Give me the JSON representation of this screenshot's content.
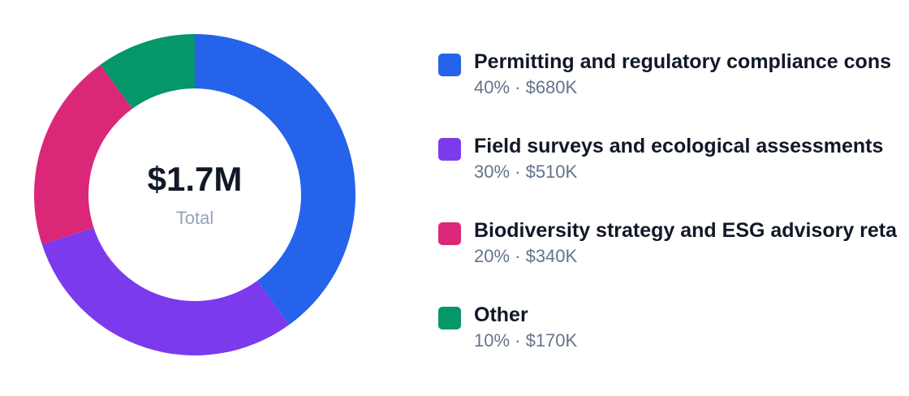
{
  "chart_data": {
    "type": "pie",
    "variant": "donut",
    "center": {
      "value": "$1.7M",
      "label": "Total"
    },
    "categories": [
      "Permitting and regulatory compliance cons",
      "Field surveys and ecological assessments",
      "Biodiversity strategy and ESG advisory reta",
      "Other"
    ],
    "values": [
      40,
      30,
      20,
      10
    ],
    "amounts": [
      "$680K",
      "$510K",
      "$340K",
      "$170K"
    ],
    "details": [
      "40% · $680K",
      "30% · $510K",
      "20% · $340K",
      "10% · $170K"
    ],
    "colors": [
      "#2563eb",
      "#7c3aed",
      "#db2777",
      "#059669"
    ],
    "legend": "right"
  }
}
